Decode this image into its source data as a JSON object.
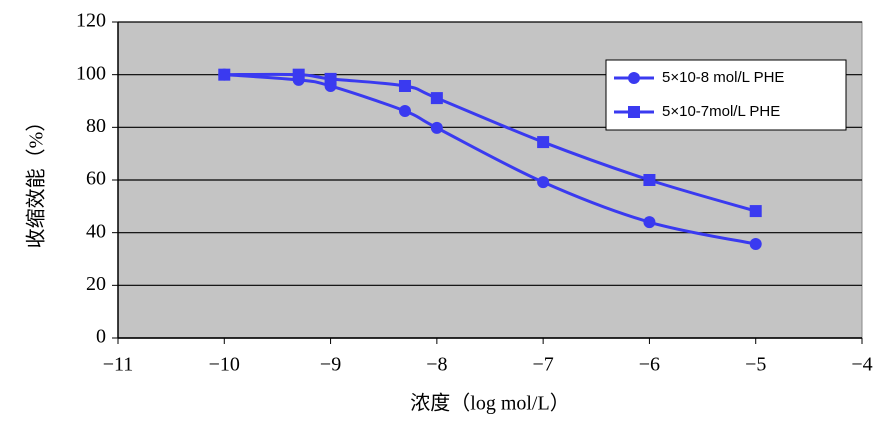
{
  "chart_data": {
    "type": "line",
    "y_label": "收缩效能（%）",
    "x_label": "浓度（log mol/L）",
    "xlim": [
      -11,
      -4
    ],
    "xticks": [
      {
        "value": -11,
        "label": "−11"
      },
      {
        "value": -10,
        "label": "−10"
      },
      {
        "value": -9,
        "label": "−9"
      },
      {
        "value": -8,
        "label": "−8"
      },
      {
        "value": -7,
        "label": "−7"
      },
      {
        "value": -6,
        "label": "−6"
      },
      {
        "value": -5,
        "label": "−5"
      },
      {
        "value": -4,
        "label": "−4"
      }
    ],
    "ylim": [
      0,
      120
    ],
    "yticks": [
      0,
      20,
      40,
      60,
      80,
      100,
      120
    ],
    "grid": true,
    "legend": "upper right",
    "series": [
      {
        "name": "5×10-8 mol/L PHE",
        "color": "#3a3af0",
        "marker": "circle",
        "x": [
          -10,
          -9.3,
          -9,
          -8.3,
          -8,
          -7,
          -6,
          -5
        ],
        "values": [
          100,
          98,
          95.7,
          86.2,
          79.8,
          59.2,
          44,
          35.7
        ]
      },
      {
        "name": "5×10-7mol/L PHE",
        "color": "#3a3af0",
        "marker": "square",
        "x": [
          -10,
          -9.3,
          -9,
          -8.3,
          -8,
          -7,
          -6,
          -5
        ],
        "values": [
          100,
          100,
          98.4,
          95.7,
          91.1,
          74.4,
          60,
          48.2
        ]
      }
    ]
  }
}
